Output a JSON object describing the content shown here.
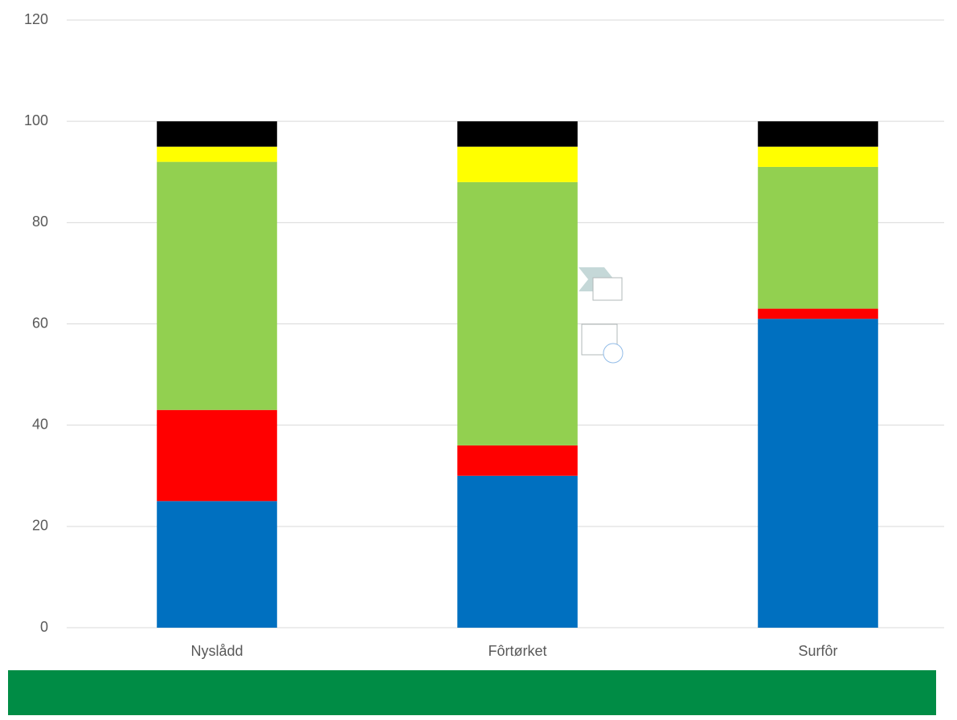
{
  "chart_data": {
    "type": "stacked_bar",
    "categories": [
      "Nyslådd",
      "Fôrtørket",
      "Surfôr"
    ],
    "series": [
      {
        "color": "#0070c0",
        "values": [
          25,
          30,
          61
        ]
      },
      {
        "color": "#ff0000",
        "values": [
          18,
          6,
          2
        ]
      },
      {
        "color": "#92d050",
        "values": [
          49,
          52,
          28
        ]
      },
      {
        "color": "#ffff00",
        "values": [
          3,
          7,
          4
        ]
      },
      {
        "color": "#000000",
        "values": [
          5,
          5,
          5
        ]
      }
    ],
    "ylim": [
      0,
      120
    ],
    "yticks": [
      0,
      20,
      40,
      60,
      80,
      100,
      120
    ],
    "grid": true
  }
}
